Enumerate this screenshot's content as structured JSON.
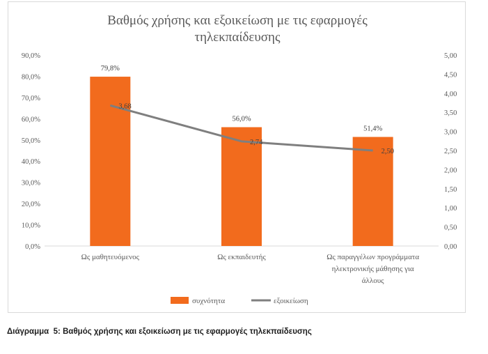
{
  "caption": {
    "prefix": "Διάγραμμα  5:",
    "text": "Βαθμός χρήσης και εξοικείωση με τις εφαρμογές τηλεκπαίδευσης"
  },
  "chart_data": {
    "type": "bar",
    "title_lines": [
      "Βαθμός χρήσης και εξοικείωση με τις εφαρμογές",
      "τηλεκπαίδευσης"
    ],
    "categories": [
      [
        "Ως μαθητευόμενος"
      ],
      [
        "Ως εκπαιδευτής"
      ],
      [
        "Ως παραγγέλων προγράμματα",
        "ηλεκτρονικής μάθησης για",
        "άλλους"
      ]
    ],
    "series": [
      {
        "name": "συχνότητα",
        "type": "bar",
        "axis": "left",
        "color": "#f26b1d",
        "values": [
          79.8,
          56.0,
          51.4
        ],
        "labels": [
          "79,8%",
          "56,0%",
          "51,4%"
        ]
      },
      {
        "name": "εξοικείωση",
        "type": "line",
        "axis": "right",
        "color": "#7f7f7f",
        "values": [
          3.68,
          2.74,
          2.5
        ],
        "labels": [
          "3,68",
          "2,74",
          "2,50"
        ]
      }
    ],
    "y_left": {
      "min": 0,
      "max": 90,
      "step": 10,
      "ticks": [
        "0,0%",
        "10,0%",
        "20,0%",
        "30,0%",
        "40,0%",
        "50,0%",
        "60,0%",
        "70,0%",
        "80,0%",
        "90,0%"
      ]
    },
    "y_right": {
      "min": 0,
      "max": 5,
      "step": 0.5,
      "ticks": [
        "0,00",
        "0,50",
        "1,00",
        "1,50",
        "2,00",
        "2,50",
        "3,00",
        "3,50",
        "4,00",
        "4,50",
        "5,00"
      ]
    },
    "grid": false,
    "legend_position": "bottom"
  }
}
